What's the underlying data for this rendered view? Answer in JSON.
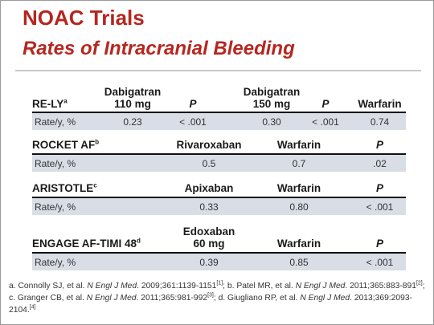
{
  "title": "NOAC Trials",
  "subtitle": "Rates of Intracranial Bleeding",
  "trials": [
    {
      "name": "RE-LY",
      "ref": "a",
      "headers": [
        "Dabigatran\n110 mg",
        "P",
        "Dabigatran\n150 mg",
        "P",
        "Warfarin"
      ],
      "row_label": "Rate/y, %",
      "values": [
        "0.23",
        "< .001",
        "0.30",
        "< .001",
        "0.74"
      ]
    },
    {
      "name": "ROCKET AF",
      "ref": "b",
      "headers": [
        "Rivaroxaban",
        "Warfarin",
        "P"
      ],
      "row_label": "Rate/y, %",
      "values": [
        "0.5",
        "0.7",
        ".02"
      ]
    },
    {
      "name": "ARISTOTLE",
      "ref": "c",
      "headers": [
        "Apixaban",
        "Warfarin",
        "P"
      ],
      "row_label": "Rate/y, %",
      "values": [
        "0.33",
        "0.80",
        "< .001"
      ]
    },
    {
      "name": "ENGAGE AF-TIMI 48",
      "ref": "d",
      "headers": [
        "Edoxaban\n60 mg",
        "Warfarin",
        "P"
      ],
      "row_label": "Rate/y, %",
      "values": [
        "0.39",
        "0.85",
        "< .001"
      ]
    }
  ],
  "footnote": {
    "a_prefix": "a. Connolly SJ, et al. ",
    "a_journal": "N Engl J Med",
    "a_suffix": ". 2009;361:1139-1151",
    "a_ref": "[1]",
    "b_prefix": "; b. Patel MR, et al. ",
    "b_journal": "N Engl J Med",
    "b_suffix": ". 2011;365:883-891",
    "b_ref": "[2]",
    "c_prefix": "; c. Granger CB, et al. ",
    "c_journal": "N Engl J Med",
    "c_suffix": ". 2011;365:981-992",
    "c_ref": "[3]",
    "d_prefix": "; d. Giugliano RP, et al. ",
    "d_journal": "N Engl J Med",
    "d_suffix": ". 2013;369:2093-2104.",
    "d_ref": "[4]"
  }
}
